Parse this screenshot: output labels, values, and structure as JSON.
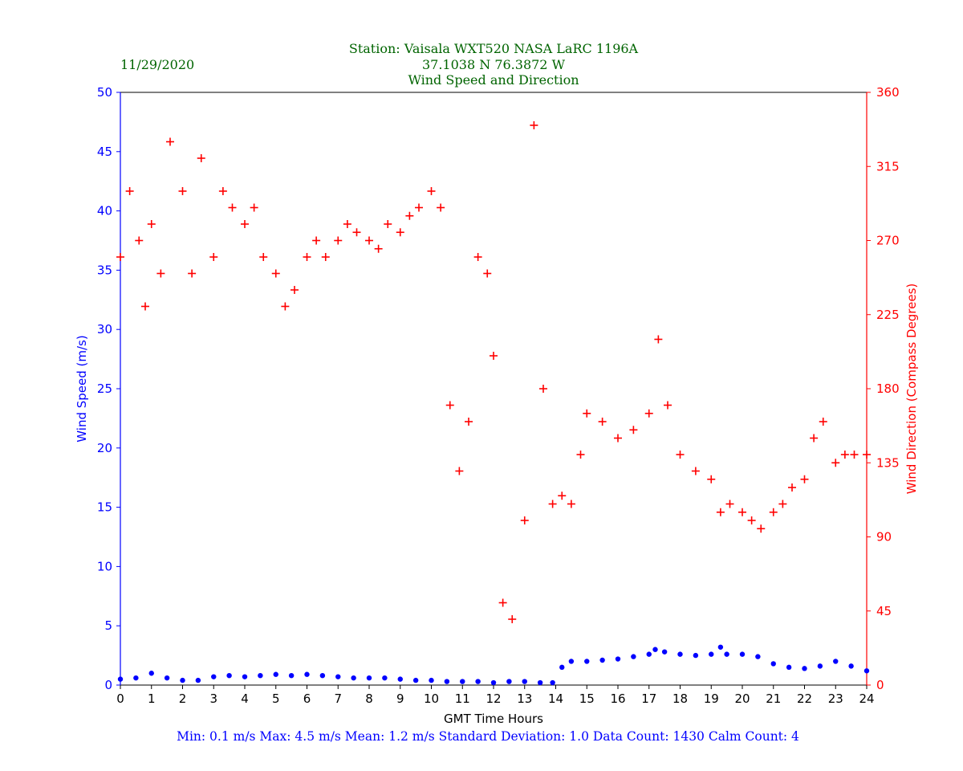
{
  "header": {
    "date": "11/29/2020",
    "station_line": "Station:  Vaisala WXT520  NASA LaRC 1196A",
    "coords_line": "37.1038 N 76.3872 W",
    "title": "Wind Speed and Direction"
  },
  "footer": {
    "stats": "Min: 0.1 m/s   Max: 4.5 m/s   Mean: 1.2 m/s  Standard Deviation: 1.0  Data Count: 1430  Calm Count:  4"
  },
  "colors": {
    "speed": "#0000ff",
    "direction": "#ff0000",
    "header_text": "#006400",
    "axis": "#000000"
  },
  "chart_data": {
    "type": "scatter",
    "xlabel": "GMT Time Hours",
    "ylabel_left": "Wind Speed (m/s)",
    "ylabel_right": "Wind Direction (Compass Degrees)",
    "xlim": [
      0,
      24
    ],
    "ylim_left": [
      0,
      50
    ],
    "ylim_right": [
      0,
      360
    ],
    "x_ticks": [
      "0",
      "1",
      "2",
      "3",
      "4",
      "5",
      "6",
      "7",
      "8",
      "9",
      "10",
      "11",
      "12",
      "13",
      "14",
      "15",
      "16",
      "17",
      "18",
      "19",
      "20",
      "21",
      "22",
      "23",
      "24"
    ],
    "y_left_ticks": [
      "0",
      "5",
      "10",
      "15",
      "20",
      "25",
      "30",
      "35",
      "40",
      "45",
      "50"
    ],
    "y_right_ticks": [
      "0",
      "45",
      "90",
      "135",
      "180",
      "225",
      "270",
      "315",
      "360"
    ],
    "grid": false,
    "series": [
      {
        "axis": "left",
        "marker": "dot",
        "x": [
          0.0,
          0.5,
          1.0,
          1.5,
          2.0,
          2.5,
          3.0,
          3.5,
          4.0,
          4.5,
          5.0,
          5.5,
          6.0,
          6.5,
          7.0,
          7.5,
          8.0,
          8.5,
          9.0,
          9.5,
          10.0,
          10.5,
          11.0,
          11.5,
          12.0,
          12.5,
          13.0,
          13.5,
          13.9,
          14.2,
          14.5,
          15.0,
          15.5,
          16.0,
          16.5,
          17.0,
          17.2,
          17.5,
          18.0,
          18.5,
          19.0,
          19.3,
          19.5,
          20.0,
          20.5,
          21.0,
          21.5,
          22.0,
          22.5,
          23.0,
          23.5,
          24.0
        ],
        "y": [
          0.5,
          0.6,
          1.0,
          0.6,
          0.4,
          0.4,
          0.7,
          0.8,
          0.7,
          0.8,
          0.9,
          0.8,
          0.9,
          0.8,
          0.7,
          0.6,
          0.6,
          0.6,
          0.5,
          0.4,
          0.4,
          0.3,
          0.3,
          0.3,
          0.2,
          0.3,
          0.3,
          0.2,
          0.2,
          1.5,
          2.0,
          2.0,
          2.1,
          2.2,
          2.4,
          2.6,
          3.0,
          2.8,
          2.6,
          2.5,
          2.6,
          3.2,
          2.6,
          2.6,
          2.4,
          1.8,
          1.5,
          1.4,
          1.6,
          2.0,
          1.6,
          1.2
        ]
      },
      {
        "axis": "right",
        "marker": "plus",
        "x": [
          0.0,
          0.3,
          0.6,
          0.8,
          1.0,
          1.3,
          1.6,
          2.0,
          2.3,
          2.6,
          3.0,
          3.3,
          3.6,
          4.0,
          4.3,
          4.6,
          5.0,
          5.3,
          5.6,
          6.0,
          6.3,
          6.6,
          7.0,
          7.3,
          7.6,
          8.0,
          8.3,
          8.6,
          9.0,
          9.3,
          9.6,
          10.0,
          10.3,
          10.6,
          10.9,
          11.2,
          11.5,
          11.8,
          12.0,
          12.3,
          12.6,
          13.0,
          13.3,
          13.6,
          13.9,
          14.2,
          14.5,
          14.8,
          15.0,
          15.5,
          16.0,
          16.5,
          17.0,
          17.3,
          17.6,
          18.0,
          18.5,
          19.0,
          19.3,
          19.6,
          20.0,
          20.3,
          20.6,
          21.0,
          21.3,
          21.6,
          22.0,
          22.3,
          22.6,
          23.0,
          23.3,
          23.6,
          24.0
        ],
        "y": [
          260,
          300,
          270,
          230,
          280,
          250,
          330,
          300,
          250,
          320,
          260,
          300,
          290,
          280,
          290,
          260,
          250,
          230,
          240,
          260,
          270,
          260,
          270,
          280,
          275,
          270,
          265,
          280,
          275,
          285,
          290,
          300,
          290,
          170,
          130,
          160,
          260,
          250,
          200,
          50,
          40,
          100,
          340,
          180,
          110,
          115,
          110,
          140,
          165,
          160,
          150,
          155,
          165,
          210,
          170,
          140,
          130,
          125,
          105,
          110,
          105,
          100,
          95,
          105,
          110,
          120,
          125,
          150,
          160,
          135,
          140,
          140,
          140
        ]
      }
    ]
  }
}
